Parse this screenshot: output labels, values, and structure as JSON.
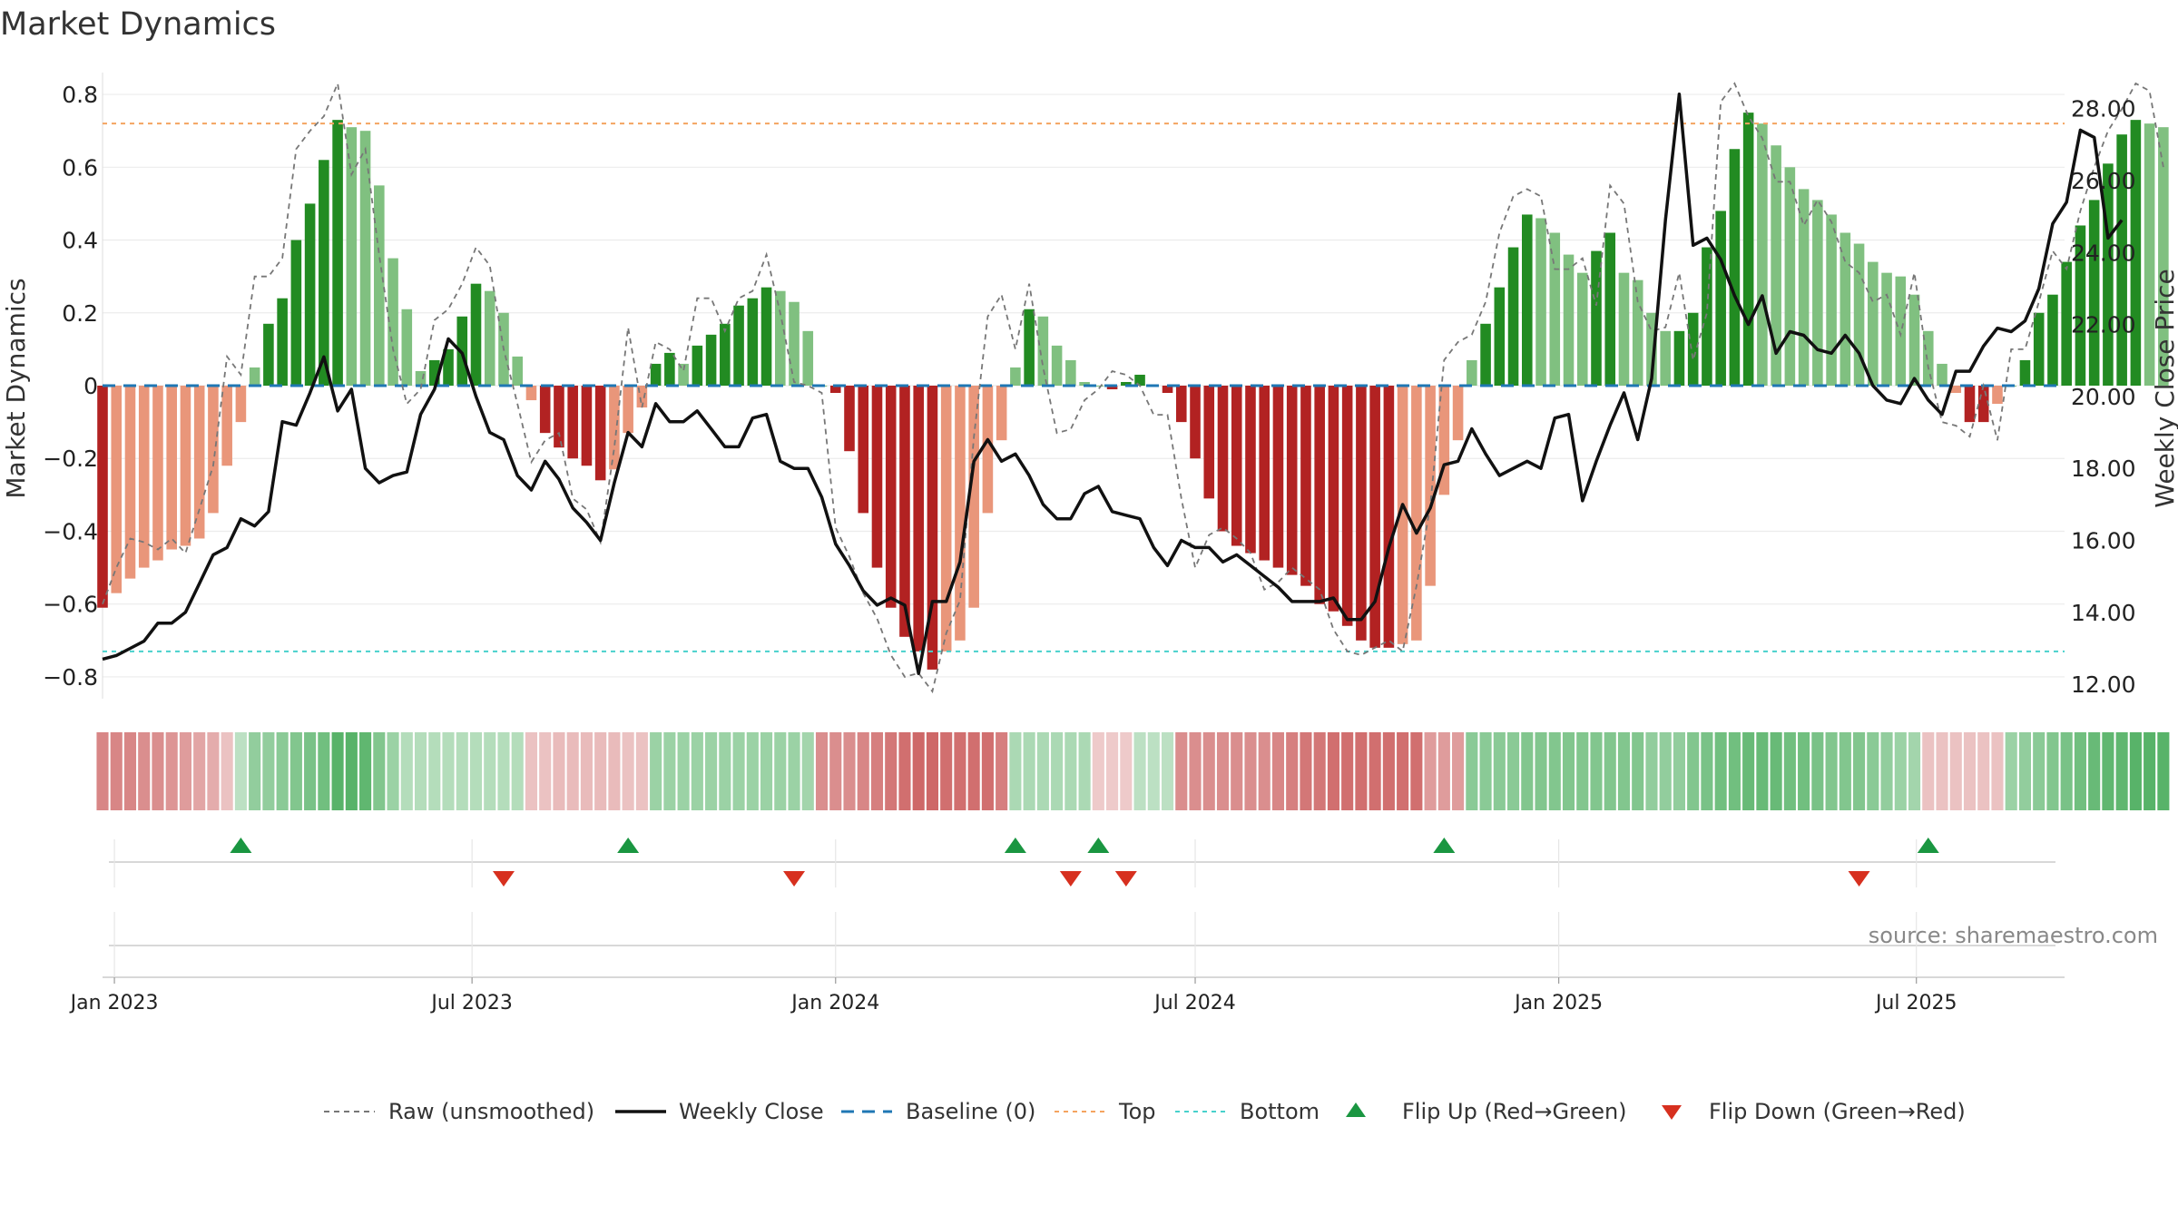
{
  "chart_data": {
    "type": "bar",
    "title": "Market Dynamics",
    "ylabel": "Market Dynamics",
    "y2label": "Weekly Close Price",
    "ylim": [
      -0.86,
      0.86
    ],
    "y2lim": [
      11.6,
      29.0
    ],
    "yticks": [
      0.8,
      0.6,
      0.4,
      0.2,
      0,
      -0.2,
      -0.4,
      -0.6,
      -0.8
    ],
    "ytick_labels": [
      "0.8",
      "0.6",
      "0.4",
      "0.2",
      "0",
      "−0.2",
      "−0.4",
      "−0.6",
      "−0.8"
    ],
    "y2ticks": [
      28,
      26,
      24,
      22,
      20,
      18,
      16,
      14,
      12
    ],
    "y2tick_labels": [
      "28.00",
      "26.00",
      "24.00",
      "22.00",
      "20.00",
      "18.00",
      "16.00",
      "14.00",
      "12.00"
    ],
    "top_level": 0.72,
    "bottom_level": -0.73,
    "baseline": 0,
    "x_range": [
      "2022-12-26",
      "2025-09-14"
    ],
    "date_ticks": [
      {
        "date": "2023-01-01",
        "label": "Jan 2023"
      },
      {
        "date": "2023-07-01",
        "label": "Jul 2023"
      },
      {
        "date": "2024-01-01",
        "label": "Jan 2024"
      },
      {
        "date": "2024-07-01",
        "label": "Jul 2024"
      },
      {
        "date": "2025-01-01",
        "label": "Jan 2025"
      },
      {
        "date": "2025-07-01",
        "label": "Jul 2025"
      }
    ],
    "start_date": "2022-12-26",
    "interval_days": 7,
    "dynamics": [
      -0.61,
      -0.57,
      -0.53,
      -0.5,
      -0.48,
      -0.45,
      -0.44,
      -0.42,
      -0.35,
      -0.22,
      -0.1,
      0.05,
      0.17,
      0.24,
      0.4,
      0.5,
      0.62,
      0.73,
      0.71,
      0.7,
      0.55,
      0.35,
      0.21,
      0.04,
      0.07,
      0.1,
      0.19,
      0.28,
      0.26,
      0.2,
      0.08,
      -0.04,
      -0.13,
      -0.17,
      -0.2,
      -0.22,
      -0.26,
      -0.23,
      -0.13,
      -0.06,
      0.06,
      0.09,
      0.06,
      0.11,
      0.14,
      0.17,
      0.22,
      0.24,
      0.27,
      0.26,
      0.23,
      0.15,
      0,
      -0.02,
      -0.18,
      -0.35,
      -0.5,
      -0.61,
      -0.69,
      -0.73,
      -0.78,
      -0.73,
      -0.7,
      -0.61,
      -0.35,
      -0.15,
      0.05,
      0.21,
      0.19,
      0.11,
      0.07,
      0.01,
      0,
      -0.01,
      0.01,
      0.03,
      0,
      -0.02,
      -0.1,
      -0.2,
      -0.31,
      -0.4,
      -0.44,
      -0.46,
      -0.48,
      -0.5,
      -0.52,
      -0.55,
      -0.6,
      -0.62,
      -0.66,
      -0.7,
      -0.72,
      -0.72,
      -0.71,
      -0.7,
      -0.55,
      -0.3,
      -0.15,
      0.07,
      0.17,
      0.27,
      0.38,
      0.47,
      0.46,
      0.42,
      0.36,
      0.31,
      0.37,
      0.42,
      0.31,
      0.29,
      0.2,
      0.15,
      0.15,
      0.2,
      0.38,
      0.48,
      0.65,
      0.75,
      0.72,
      0.66,
      0.6,
      0.54,
      0.51,
      0.47,
      0.42,
      0.39,
      0.34,
      0.31,
      0.3,
      0.25,
      0.15,
      0.06,
      -0.02,
      -0.1,
      -0.1,
      -0.05,
      0,
      0.07,
      0.2,
      0.25,
      0.34,
      0.44,
      0.51,
      0.61,
      0.69,
      0.73,
      0.72,
      0.71
    ],
    "raw": [
      -0.6,
      -0.5,
      -0.42,
      -0.43,
      -0.45,
      -0.42,
      -0.46,
      -0.34,
      -0.22,
      0.08,
      0.03,
      0.3,
      0.3,
      0.35,
      0.65,
      0.7,
      0.74,
      0.83,
      0.58,
      0.65,
      0.36,
      0.1,
      -0.05,
      -0.01,
      0.18,
      0.21,
      0.28,
      0.38,
      0.33,
      0.1,
      -0.05,
      -0.21,
      -0.15,
      -0.13,
      -0.31,
      -0.34,
      -0.43,
      -0.17,
      0.16,
      -0.06,
      0.12,
      0.1,
      0.04,
      0.24,
      0.24,
      0.15,
      0.24,
      0.26,
      0.36,
      0.2,
      0.01,
      0.0,
      -0.02,
      -0.39,
      -0.47,
      -0.57,
      -0.64,
      -0.74,
      -0.8,
      -0.79,
      -0.84,
      -0.68,
      -0.59,
      -0.14,
      0.19,
      0.25,
      0.1,
      0.28,
      0.05,
      -0.13,
      -0.12,
      -0.04,
      -0.01,
      0.04,
      0.03,
      0.0,
      -0.08,
      -0.08,
      -0.31,
      -0.5,
      -0.41,
      -0.39,
      -0.42,
      -0.46,
      -0.56,
      -0.54,
      -0.5,
      -0.53,
      -0.56,
      -0.67,
      -0.73,
      -0.74,
      -0.72,
      -0.7,
      -0.73,
      -0.55,
      -0.33,
      0.07,
      0.12,
      0.14,
      0.23,
      0.42,
      0.52,
      0.54,
      0.52,
      0.32,
      0.32,
      0.35,
      0.22,
      0.55,
      0.5,
      0.23,
      0.15,
      0.16,
      0.31,
      0.07,
      0.2,
      0.78,
      0.83,
      0.74,
      0.68,
      0.56,
      0.56,
      0.44,
      0.51,
      0.45,
      0.34,
      0.31,
      0.23,
      0.25,
      0.14,
      0.31,
      0.05,
      -0.1,
      -0.11,
      -0.14,
      0.0,
      -0.15,
      0.1,
      0.1,
      0.23,
      0.37,
      0.32,
      0.48,
      0.6,
      0.7,
      0.76,
      0.83,
      0.81,
      0.6
    ],
    "close": [
      12.7,
      12.8,
      13.0,
      13.2,
      13.7,
      13.7,
      14.0,
      14.8,
      15.6,
      15.8,
      16.6,
      16.4,
      16.8,
      19.3,
      19.2,
      20.1,
      21.1,
      19.6,
      20.2,
      18.0,
      17.6,
      17.8,
      17.9,
      19.5,
      20.2,
      21.6,
      21.2,
      20.0,
      19.0,
      18.8,
      17.8,
      17.4,
      18.2,
      17.7,
      16.9,
      16.5,
      16.0,
      17.6,
      19.0,
      18.6,
      19.8,
      19.3,
      19.3,
      19.6,
      19.1,
      18.6,
      18.6,
      19.4,
      19.5,
      18.2,
      18.0,
      18.0,
      17.2,
      15.9,
      15.3,
      14.6,
      14.2,
      14.4,
      14.2,
      12.3,
      14.3,
      14.3,
      15.4,
      18.2,
      18.8,
      18.2,
      18.4,
      17.8,
      17.0,
      16.6,
      16.6,
      17.3,
      17.5,
      16.8,
      16.7,
      16.6,
      15.8,
      15.3,
      16.0,
      15.8,
      15.8,
      15.4,
      15.6,
      15.3,
      15.0,
      14.7,
      14.3,
      14.3,
      14.3,
      14.4,
      13.8,
      13.8,
      14.3,
      15.8,
      17.0,
      16.2,
      16.9,
      18.1,
      18.2,
      19.1,
      18.4,
      17.8,
      18.0,
      18.2,
      18.0,
      19.4,
      19.5,
      17.1,
      18.2,
      19.2,
      20.1,
      18.8,
      20.5,
      24.9,
      28.4,
      24.2,
      24.4,
      23.8,
      22.8,
      22.0,
      22.8,
      21.2,
      21.8,
      21.7,
      21.3,
      21.2,
      21.7,
      21.2,
      20.3,
      19.9,
      19.8,
      20.5,
      19.9,
      19.5,
      20.7,
      20.7,
      21.4,
      21.9,
      21.8,
      22.1,
      23.0,
      24.8,
      25.4,
      27.4,
      27.2,
      24.4,
      24.9
    ],
    "shading": [
      -0.55,
      -0.55,
      -0.55,
      -0.5,
      -0.5,
      -0.45,
      -0.4,
      -0.35,
      -0.3,
      -0.15,
      0.15,
      0.4,
      0.4,
      0.45,
      0.5,
      0.55,
      0.6,
      0.75,
      0.75,
      0.7,
      0.5,
      0.35,
      0.2,
      0.2,
      0.2,
      0.2,
      0.2,
      0.2,
      0.2,
      0.2,
      0.2,
      -0.15,
      -0.15,
      -0.2,
      -0.2,
      -0.2,
      -0.2,
      -0.2,
      -0.15,
      -0.15,
      0.35,
      0.35,
      0.35,
      0.35,
      0.35,
      0.35,
      0.35,
      0.35,
      0.35,
      0.35,
      0.35,
      0.3,
      -0.5,
      -0.5,
      -0.5,
      -0.55,
      -0.6,
      -0.65,
      -0.7,
      -0.75,
      -0.75,
      -0.7,
      -0.7,
      -0.7,
      -0.7,
      -0.6,
      0.25,
      0.25,
      0.25,
      0.25,
      0.25,
      0.25,
      -0.1,
      -0.1,
      -0.1,
      0.15,
      0.15,
      0.15,
      -0.5,
      -0.5,
      -0.5,
      -0.5,
      -0.5,
      -0.5,
      -0.5,
      -0.55,
      -0.6,
      -0.65,
      -0.65,
      -0.7,
      -0.7,
      -0.7,
      -0.7,
      -0.7,
      -0.7,
      -0.7,
      -0.4,
      -0.4,
      -0.4,
      0.45,
      0.45,
      0.45,
      0.45,
      0.5,
      0.5,
      0.5,
      0.5,
      0.5,
      0.5,
      0.5,
      0.5,
      0.5,
      0.4,
      0.4,
      0.4,
      0.5,
      0.55,
      0.6,
      0.6,
      0.65,
      0.65,
      0.65,
      0.6,
      0.6,
      0.55,
      0.5,
      0.5,
      0.5,
      0.45,
      0.4,
      0.35,
      0.3,
      -0.15,
      -0.15,
      -0.15,
      -0.15,
      -0.15,
      -0.15,
      0.35,
      0.4,
      0.45,
      0.5,
      0.55,
      0.6,
      0.65,
      0.7,
      0.7,
      0.75,
      0.75,
      0.75
    ],
    "flips_up": [
      "2023-03-06",
      "2023-09-18",
      "2024-04-01",
      "2024-05-13",
      "2024-11-04",
      "2025-07-07"
    ],
    "flips_down": [
      "2023-07-17",
      "2023-12-11",
      "2024-04-29",
      "2024-05-27",
      "2025-06-02"
    ],
    "legend": [
      "Raw (unsmoothed)",
      "Weekly Close",
      "Baseline (0)",
      "Top",
      "Bottom",
      "Flip Up (Red→Green)",
      "Flip Down (Green→Red)"
    ],
    "source": "source: sharemaestro.com"
  },
  "colors": {
    "green_strong": "#228b22",
    "green_light": "#80c080",
    "red_strong": "#b22222",
    "red_light": "#e9967a",
    "flip_up": "#1a9641",
    "flip_down": "#d7301f",
    "top_line": "#f4a460",
    "bottom_line": "#48d1cc",
    "baseline": "#1f77b4",
    "close_line": "#111111",
    "raw_line": "#777777"
  }
}
